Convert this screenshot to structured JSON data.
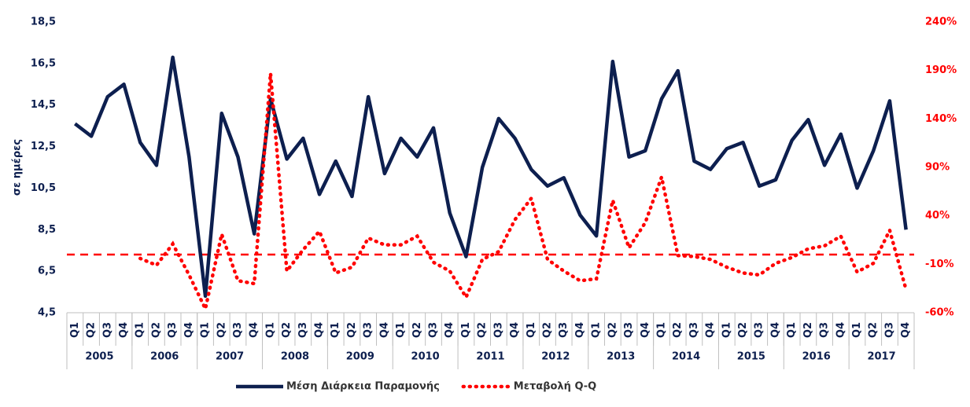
{
  "chart_data": {
    "type": "line",
    "y_label": "σε ημέρες",
    "categories": [
      "Q1",
      "Q2",
      "Q3",
      "Q4",
      "Q1",
      "Q2",
      "Q3",
      "Q4",
      "Q1",
      "Q2",
      "Q3",
      "Q4",
      "Q1",
      "Q2",
      "Q3",
      "Q4",
      "Q1",
      "Q2",
      "Q3",
      "Q4",
      "Q1",
      "Q2",
      "Q3",
      "Q4",
      "Q1",
      "Q2",
      "Q3",
      "Q4",
      "Q1",
      "Q2",
      "Q3",
      "Q4",
      "Q1",
      "Q2",
      "Q3",
      "Q4",
      "Q1",
      "Q2",
      "Q3",
      "Q4",
      "Q1",
      "Q2",
      "Q3",
      "Q4",
      "Q1",
      "Q2",
      "Q3",
      "Q4",
      "Q1",
      "Q2",
      "Q3",
      "Q4"
    ],
    "years": [
      "2005",
      "2006",
      "2007",
      "2008",
      "2009",
      "2010",
      "2011",
      "2012",
      "2013",
      "2014",
      "2015",
      "2016",
      "2017"
    ],
    "series": [
      {
        "name": "Μέση Διάρκεια Παραμονής",
        "color": "#0d1f4f",
        "style": "solid",
        "values": [
          13.6,
          13.0,
          14.9,
          15.5,
          12.7,
          11.6,
          16.8,
          12.0,
          5.3,
          14.1,
          12.0,
          8.3,
          14.8,
          11.9,
          12.9,
          10.2,
          11.8,
          10.1,
          14.9,
          11.2,
          12.9,
          12.0,
          13.4,
          9.3,
          7.2,
          11.5,
          13.85,
          12.9,
          11.4,
          10.6,
          11.0,
          9.2,
          8.2,
          16.6,
          12.0,
          12.3,
          14.8,
          16.15,
          11.8,
          11.4,
          12.4,
          12.7,
          10.6,
          10.9,
          12.8,
          13.8,
          11.6,
          13.1,
          10.5,
          12.3,
          14.7,
          8.5
        ]
      },
      {
        "name": "Μεταβολή Q-Q",
        "color": "#ff0000",
        "style": "dotted",
        "axis": "y2",
        "values": [
          null,
          null,
          null,
          null,
          -4,
          -11,
          11,
          -21,
          -56,
          21,
          -27,
          -30,
          187,
          -17,
          5,
          24,
          -19,
          -13,
          17,
          10,
          10,
          19,
          -8,
          -17,
          -44,
          -5,
          3,
          36,
          58,
          -5,
          -17,
          -27,
          -25,
          56,
          7,
          33,
          80,
          -1,
          -2,
          -5,
          -13,
          -19,
          -21,
          -9,
          -3,
          6,
          9,
          19,
          -18,
          -9,
          25,
          -36
        ]
      }
    ],
    "reference_lines": [
      {
        "axis": "y2",
        "value": 0,
        "color": "#ff0000"
      }
    ],
    "ylim": [
      4.5,
      18.5
    ],
    "yticks": [
      {
        "value": 4.5,
        "label": "4,5"
      },
      {
        "value": 6.5,
        "label": "6,5"
      },
      {
        "value": 8.5,
        "label": "8,5"
      },
      {
        "value": 10.5,
        "label": "10,5"
      },
      {
        "value": 12.5,
        "label": "12,5"
      },
      {
        "value": 14.5,
        "label": "14,5"
      },
      {
        "value": 16.5,
        "label": "16,5"
      },
      {
        "value": 18.5,
        "label": "18,5"
      }
    ],
    "y2lim": [
      -60,
      240
    ],
    "y2ticks": [
      {
        "value": -60,
        "label": "-60%"
      },
      {
        "value": -10,
        "label": "-10%"
      },
      {
        "value": 40,
        "label": "40%"
      },
      {
        "value": 90,
        "label": "90%"
      },
      {
        "value": 140,
        "label": "140%"
      },
      {
        "value": 190,
        "label": "190%"
      },
      {
        "value": 240,
        "label": "240%"
      }
    ],
    "legend": "bottom"
  }
}
